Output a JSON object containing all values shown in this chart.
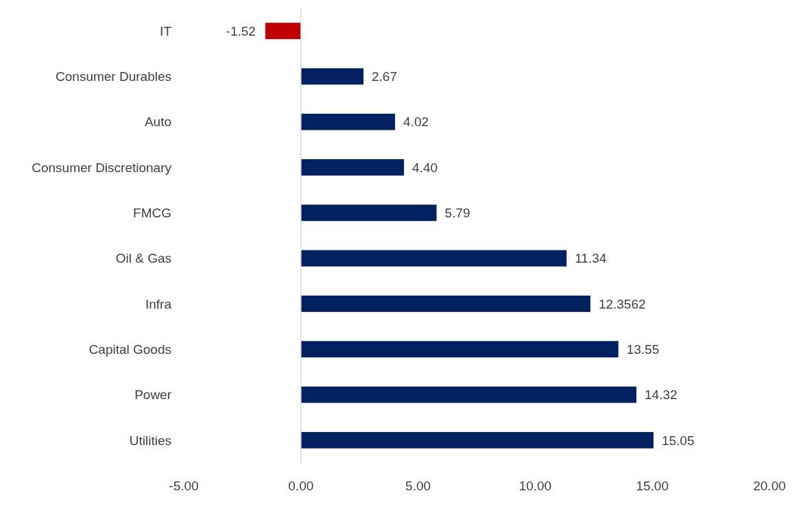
{
  "chart_data": {
    "type": "bar",
    "orientation": "horizontal",
    "categories": [
      "IT",
      "Consumer Durables",
      "Auto",
      "Consumer Discretionary",
      "FMCG",
      "Oil & Gas",
      "Infra",
      "Capital Goods",
      "Power",
      "Utilities"
    ],
    "values": [
      -1.52,
      2.67,
      4.02,
      4.4,
      5.79,
      11.34,
      12.3562,
      13.55,
      14.32,
      15.05
    ],
    "colors": [
      "#c00000",
      "#002060",
      "#002060",
      "#002060",
      "#002060",
      "#002060",
      "#002060",
      "#002060",
      "#002060",
      "#002060"
    ],
    "value_labels": [
      "-1.52",
      "2.67",
      "4.02",
      "4.40",
      "5.79",
      "11.34",
      "12.3562",
      "13.55",
      "14.32",
      "15.05"
    ],
    "xlim": [
      -5,
      20
    ],
    "xticks": [
      {
        "value": -5,
        "label": "-5.00"
      },
      {
        "value": 0,
        "label": "0.00"
      },
      {
        "value": 5,
        "label": "5.00"
      },
      {
        "value": 10,
        "label": "10.00"
      },
      {
        "value": 15,
        "label": "15.00"
      },
      {
        "value": 20,
        "label": "20.00"
      }
    ]
  }
}
